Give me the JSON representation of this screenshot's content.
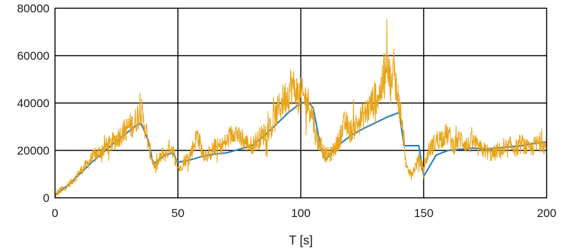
{
  "chart_data": {
    "type": "line",
    "xlabel": "T [s]",
    "ylabel": "",
    "xlim": [
      0,
      200
    ],
    "ylim": [
      0,
      80000
    ],
    "x_ticks": [
      0,
      50,
      100,
      150,
      200
    ],
    "y_ticks": [
      0,
      20000,
      40000,
      60000,
      80000
    ],
    "x_tick_labels": [
      "0",
      "50",
      "100",
      "150",
      "200"
    ],
    "y_tick_labels": [
      "0",
      "20000",
      "40000",
      "60000",
      "80000"
    ],
    "grid": true,
    "series": [
      {
        "color": "#2a7fc1",
        "style": "smooth",
        "x": [
          0,
          5,
          10,
          15,
          20,
          25,
          30,
          33,
          35,
          38,
          40,
          42,
          45,
          48,
          50,
          55,
          60,
          65,
          70,
          75,
          80,
          85,
          90,
          95,
          100,
          103,
          105,
          108,
          110,
          115,
          120,
          125,
          130,
          135,
          140,
          142,
          145,
          148,
          150,
          155,
          160,
          165,
          170,
          175,
          180,
          185,
          190,
          195,
          200
        ],
        "values": [
          1000,
          5000,
          10000,
          15000,
          19500,
          24000,
          28000,
          30500,
          31500,
          24000,
          14000,
          16000,
          18000,
          19000,
          15000,
          16000,
          17500,
          18500,
          19000,
          20500,
          22000,
          26000,
          31000,
          36000,
          40000,
          40500,
          38000,
          22000,
          16000,
          22000,
          26000,
          29000,
          31500,
          34000,
          36000,
          22000,
          22000,
          22000,
          9000,
          18000,
          20000,
          20500,
          21000,
          20500,
          21000,
          21500,
          22000,
          23000,
          23500
        ]
      },
      {
        "color": "#e8a317",
        "style": "noisy",
        "x": [
          0,
          2,
          5,
          8,
          10,
          13,
          15,
          18,
          20,
          23,
          25,
          28,
          30,
          32,
          33,
          34,
          35,
          36,
          37,
          38,
          40,
          41,
          42,
          44,
          45,
          47,
          48,
          49,
          50,
          51,
          52,
          55,
          57,
          58,
          60,
          62,
          65,
          68,
          70,
          72,
          73,
          75,
          78,
          80,
          82,
          85,
          88,
          90,
          92,
          95,
          96,
          98,
          100,
          102,
          103,
          104,
          105,
          106,
          108,
          110,
          112,
          115,
          118,
          120,
          122,
          125,
          128,
          130,
          132,
          134,
          135,
          136,
          137,
          138,
          139,
          140,
          141,
          142,
          143,
          145,
          147,
          148,
          150,
          152,
          155,
          158,
          160,
          162,
          165,
          168,
          170,
          172,
          175,
          178,
          180,
          183,
          185,
          188,
          190,
          193,
          195,
          198,
          200
        ],
        "values": [
          1000,
          3000,
          5000,
          8000,
          11000,
          14000,
          17000,
          19000,
          21000,
          23000,
          25000,
          28000,
          30000,
          31000,
          33000,
          36000,
          37000,
          32000,
          29000,
          22000,
          15000,
          12000,
          15000,
          19000,
          18000,
          22000,
          20000,
          16000,
          13000,
          12000,
          15000,
          18000,
          24000,
          27000,
          19000,
          18000,
          21000,
          22000,
          24000,
          27000,
          29000,
          25000,
          23000,
          22000,
          24000,
          27000,
          30000,
          35000,
          40000,
          44000,
          48000,
          45000,
          43000,
          42000,
          40000,
          38000,
          34000,
          26000,
          22000,
          18000,
          18000,
          23000,
          32000,
          28000,
          30000,
          34000,
          38000,
          42000,
          44000,
          50000,
          64000,
          52000,
          46000,
          58000,
          44000,
          40000,
          32000,
          24000,
          12000,
          10000,
          14000,
          16000,
          12000,
          20000,
          24000,
          26000,
          27000,
          22000,
          25000,
          22000,
          24000,
          21000,
          20000,
          18000,
          20000,
          19000,
          22000,
          21000,
          23000,
          20000,
          22000,
          24000,
          21000
        ]
      }
    ]
  }
}
